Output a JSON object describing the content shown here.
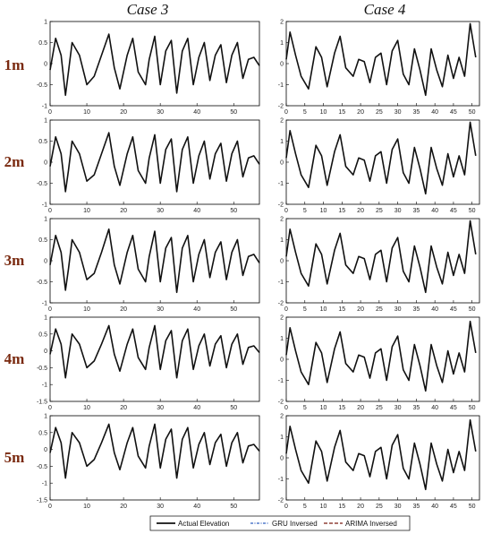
{
  "colors": {
    "actual": "#111111",
    "gru": "#2f5fc0",
    "arima": "#7a1a12",
    "row_label": "#7a2a10"
  },
  "legend": {
    "actual": "Actual Elevation",
    "gru": "GRU Inversed",
    "arima": "ARIMA Inversed"
  },
  "chart_data": [
    {
      "type": "line",
      "column_title": "Case 3",
      "row_label": "1m",
      "xlim": [
        0,
        57
      ],
      "ylim": [
        -1,
        1
      ],
      "xticks": [
        0,
        10,
        20,
        30,
        40,
        50
      ],
      "yticks": [
        -1,
        -0.5,
        0,
        0.5,
        1
      ],
      "series": [
        {
          "name": "Actual Elevation",
          "x": [
            0,
            1.5,
            3,
            4.2,
            5,
            6,
            8,
            10,
            12,
            14,
            16,
            17.5,
            19,
            21,
            22.5,
            24,
            26,
            27,
            28.5,
            30,
            31.5,
            33,
            34.5,
            36,
            37.5,
            39,
            40.5,
            42,
            43.5,
            45,
            46.5,
            48,
            49.5,
            51,
            52.5,
            54,
            55.5,
            57
          ],
          "y": [
            -0.15,
            0.6,
            0.2,
            -0.75,
            -0.2,
            0.5,
            0.2,
            -0.5,
            -0.3,
            0.2,
            0.7,
            -0.1,
            -0.6,
            0.2,
            0.6,
            -0.2,
            -0.5,
            0.1,
            0.65,
            -0.5,
            0.3,
            0.55,
            -0.7,
            0.3,
            0.6,
            -0.5,
            0.15,
            0.5,
            -0.4,
            0.2,
            0.45,
            -0.45,
            0.2,
            0.5,
            -0.35,
            0.1,
            0.15,
            -0.05
          ]
        }
      ]
    },
    {
      "type": "line",
      "column_title": "Case 4",
      "row_label": "1m",
      "xlim": [
        0,
        52
      ],
      "ylim": [
        -2,
        2
      ],
      "xticks": [
        0,
        5,
        10,
        15,
        20,
        25,
        30,
        35,
        40,
        45,
        50
      ],
      "yticks": [
        -2,
        -1,
        0,
        1,
        2
      ],
      "series": [
        {
          "name": "Actual Elevation",
          "x": [
            0,
            1,
            2.5,
            4,
            6,
            8,
            9.5,
            11,
            13,
            14.5,
            16,
            18,
            19.5,
            21,
            22.5,
            24,
            25.5,
            27,
            28.5,
            30,
            31.5,
            33,
            34.5,
            36,
            37.5,
            39,
            40.5,
            42,
            43.5,
            45,
            46.5,
            48,
            49.5,
            51
          ],
          "y": [
            0.2,
            1.5,
            0.4,
            -0.6,
            -1.2,
            0.8,
            0.3,
            -1.1,
            0.5,
            1.3,
            -0.2,
            -0.6,
            0.2,
            0.1,
            -0.9,
            0.3,
            0.5,
            -1.0,
            0.6,
            1.1,
            -0.5,
            -1.0,
            0.7,
            -0.3,
            -1.5,
            0.7,
            -0.3,
            -1.1,
            0.4,
            -0.7,
            0.3,
            -0.6,
            1.9,
            0.3
          ]
        }
      ]
    },
    {
      "type": "line",
      "column_title": "Case 3",
      "row_label": "2m",
      "xlim": [
        0,
        57
      ],
      "ylim": [
        -1,
        1
      ],
      "xticks": [
        0,
        10,
        20,
        30,
        40,
        50
      ],
      "yticks": [
        -1,
        -0.5,
        0,
        0.5,
        1
      ],
      "series": [
        {
          "name": "Actual Elevation",
          "x": [
            0,
            1.5,
            3,
            4.2,
            5,
            6,
            8,
            10,
            12,
            14,
            16,
            17.5,
            19,
            21,
            22.5,
            24,
            26,
            27,
            28.5,
            30,
            31.5,
            33,
            34.5,
            36,
            37.5,
            39,
            40.5,
            42,
            43.5,
            45,
            46.5,
            48,
            49.5,
            51,
            52.5,
            54,
            55.5,
            57
          ],
          "y": [
            -0.1,
            0.6,
            0.2,
            -0.7,
            -0.2,
            0.5,
            0.2,
            -0.45,
            -0.3,
            0.2,
            0.7,
            -0.1,
            -0.55,
            0.2,
            0.6,
            -0.2,
            -0.5,
            0.1,
            0.65,
            -0.5,
            0.3,
            0.55,
            -0.7,
            0.3,
            0.6,
            -0.5,
            0.15,
            0.5,
            -0.4,
            0.2,
            0.45,
            -0.45,
            0.2,
            0.5,
            -0.35,
            0.1,
            0.15,
            -0.05
          ]
        }
      ]
    },
    {
      "type": "line",
      "column_title": "Case 4",
      "row_label": "2m",
      "xlim": [
        0,
        52
      ],
      "ylim": [
        -2,
        2
      ],
      "xticks": [
        0,
        5,
        10,
        15,
        20,
        25,
        30,
        35,
        40,
        45,
        50
      ],
      "yticks": [
        -2,
        -1,
        0,
        1,
        2
      ],
      "series": [
        {
          "name": "Actual Elevation",
          "x": [
            0,
            1,
            2.5,
            4,
            6,
            8,
            9.5,
            11,
            13,
            14.5,
            16,
            18,
            19.5,
            21,
            22.5,
            24,
            25.5,
            27,
            28.5,
            30,
            31.5,
            33,
            34.5,
            36,
            37.5,
            39,
            40.5,
            42,
            43.5,
            45,
            46.5,
            48,
            49.5,
            51
          ],
          "y": [
            0.2,
            1.5,
            0.4,
            -0.6,
            -1.2,
            0.8,
            0.3,
            -1.1,
            0.5,
            1.3,
            -0.2,
            -0.6,
            0.2,
            0.1,
            -0.9,
            0.3,
            0.5,
            -1.0,
            0.6,
            1.1,
            -0.5,
            -1.0,
            0.7,
            -0.3,
            -1.5,
            0.7,
            -0.3,
            -1.1,
            0.4,
            -0.7,
            0.3,
            -0.6,
            1.9,
            0.3
          ]
        }
      ]
    },
    {
      "type": "line",
      "column_title": "Case 3",
      "row_label": "3m",
      "xlim": [
        0,
        57
      ],
      "ylim": [
        -1,
        1
      ],
      "xticks": [
        0,
        10,
        20,
        30,
        40,
        50
      ],
      "yticks": [
        -1,
        -0.5,
        0,
        0.5,
        1
      ],
      "series": [
        {
          "name": "Actual Elevation",
          "x": [
            0,
            1.5,
            3,
            4.2,
            5,
            6,
            8,
            10,
            12,
            14,
            16,
            17.5,
            19,
            21,
            22.5,
            24,
            26,
            27,
            28.5,
            30,
            31.5,
            33,
            34.5,
            36,
            37.5,
            39,
            40.5,
            42,
            43.5,
            45,
            46.5,
            48,
            49.5,
            51,
            52.5,
            54,
            55.5,
            57
          ],
          "y": [
            -0.1,
            0.6,
            0.2,
            -0.7,
            -0.2,
            0.5,
            0.2,
            -0.45,
            -0.3,
            0.2,
            0.75,
            -0.1,
            -0.55,
            0.2,
            0.6,
            -0.2,
            -0.5,
            0.1,
            0.7,
            -0.5,
            0.3,
            0.55,
            -0.75,
            0.3,
            0.6,
            -0.5,
            0.15,
            0.5,
            -0.4,
            0.2,
            0.45,
            -0.45,
            0.2,
            0.5,
            -0.35,
            0.1,
            0.15,
            -0.05
          ]
        }
      ]
    },
    {
      "type": "line",
      "column_title": "Case 4",
      "row_label": "3m",
      "xlim": [
        0,
        52
      ],
      "ylim": [
        -2,
        2
      ],
      "xticks": [
        0,
        5,
        10,
        15,
        20,
        25,
        30,
        35,
        40,
        45,
        50
      ],
      "yticks": [
        -2,
        -1,
        0,
        1,
        2
      ],
      "series": [
        {
          "name": "Actual Elevation",
          "x": [
            0,
            1,
            2.5,
            4,
            6,
            8,
            9.5,
            11,
            13,
            14.5,
            16,
            18,
            19.5,
            21,
            22.5,
            24,
            25.5,
            27,
            28.5,
            30,
            31.5,
            33,
            34.5,
            36,
            37.5,
            39,
            40.5,
            42,
            43.5,
            45,
            46.5,
            48,
            49.5,
            51
          ],
          "y": [
            0.2,
            1.5,
            0.4,
            -0.6,
            -1.2,
            0.8,
            0.3,
            -1.1,
            0.5,
            1.3,
            -0.2,
            -0.6,
            0.2,
            0.1,
            -0.9,
            0.3,
            0.5,
            -1.0,
            0.6,
            1.1,
            -0.5,
            -1.0,
            0.7,
            -0.3,
            -1.5,
            0.7,
            -0.3,
            -1.1,
            0.4,
            -0.7,
            0.3,
            -0.6,
            1.9,
            0.3
          ]
        }
      ]
    },
    {
      "type": "line",
      "column_title": "Case 3",
      "row_label": "4m",
      "xlim": [
        0,
        57
      ],
      "ylim": [
        -1.5,
        1
      ],
      "xticks": [
        0,
        10,
        20,
        30,
        40,
        50
      ],
      "yticks": [
        -1.5,
        -1,
        -0.5,
        0,
        0.5,
        1
      ],
      "series": [
        {
          "name": "Actual Elevation",
          "x": [
            0,
            1.5,
            3,
            4.2,
            5,
            6,
            8,
            10,
            12,
            14,
            16,
            17.5,
            19,
            21,
            22.5,
            24,
            26,
            27,
            28.5,
            30,
            31.5,
            33,
            34.5,
            36,
            37.5,
            39,
            40.5,
            42,
            43.5,
            45,
            46.5,
            48,
            49.5,
            51,
            52.5,
            54,
            55.5,
            57
          ],
          "y": [
            -0.1,
            0.65,
            0.2,
            -0.8,
            -0.2,
            0.5,
            0.2,
            -0.5,
            -0.3,
            0.2,
            0.75,
            -0.1,
            -0.6,
            0.2,
            0.65,
            -0.2,
            -0.55,
            0.1,
            0.75,
            -0.55,
            0.3,
            0.6,
            -0.8,
            0.3,
            0.65,
            -0.55,
            0.15,
            0.5,
            -0.45,
            0.2,
            0.45,
            -0.5,
            0.2,
            0.5,
            -0.4,
            0.1,
            0.15,
            -0.05
          ]
        }
      ]
    },
    {
      "type": "line",
      "column_title": "Case 4",
      "row_label": "4m",
      "xlim": [
        0,
        52
      ],
      "ylim": [
        -2,
        2
      ],
      "xticks": [
        0,
        5,
        10,
        15,
        20,
        25,
        30,
        35,
        40,
        45,
        50
      ],
      "yticks": [
        -2,
        -1,
        0,
        1,
        2
      ],
      "series": [
        {
          "name": "Actual Elevation",
          "x": [
            0,
            1,
            2.5,
            4,
            6,
            8,
            9.5,
            11,
            13,
            14.5,
            16,
            18,
            19.5,
            21,
            22.5,
            24,
            25.5,
            27,
            28.5,
            30,
            31.5,
            33,
            34.5,
            36,
            37.5,
            39,
            40.5,
            42,
            43.5,
            45,
            46.5,
            48,
            49.5,
            51
          ],
          "y": [
            0.2,
            1.5,
            0.4,
            -0.6,
            -1.2,
            0.8,
            0.3,
            -1.1,
            0.5,
            1.3,
            -0.2,
            -0.6,
            0.2,
            0.1,
            -0.9,
            0.3,
            0.5,
            -1.0,
            0.6,
            1.1,
            -0.5,
            -1.0,
            0.7,
            -0.3,
            -1.5,
            0.7,
            -0.3,
            -1.1,
            0.4,
            -0.7,
            0.3,
            -0.6,
            1.8,
            0.3
          ]
        }
      ]
    },
    {
      "type": "line",
      "column_title": "Case 3",
      "row_label": "5m",
      "xlim": [
        0,
        57
      ],
      "ylim": [
        -1.5,
        1
      ],
      "xticks": [
        0,
        10,
        20,
        30,
        40,
        50
      ],
      "yticks": [
        -1.5,
        -1,
        -0.5,
        0,
        0.5,
        1
      ],
      "series": [
        {
          "name": "Actual Elevation",
          "x": [
            0,
            1.5,
            3,
            4.2,
            5,
            6,
            8,
            10,
            12,
            14,
            16,
            17.5,
            19,
            21,
            22.5,
            24,
            26,
            27,
            28.5,
            30,
            31.5,
            33,
            34.5,
            36,
            37.5,
            39,
            40.5,
            42,
            43.5,
            45,
            46.5,
            48,
            49.5,
            51,
            52.5,
            54,
            55.5,
            57
          ],
          "y": [
            -0.1,
            0.65,
            0.2,
            -0.85,
            -0.2,
            0.5,
            0.2,
            -0.5,
            -0.3,
            0.2,
            0.75,
            -0.1,
            -0.6,
            0.2,
            0.65,
            -0.2,
            -0.55,
            0.1,
            0.75,
            -0.55,
            0.3,
            0.6,
            -0.85,
            0.3,
            0.65,
            -0.55,
            0.15,
            0.5,
            -0.45,
            0.2,
            0.45,
            -0.5,
            0.2,
            0.5,
            -0.4,
            0.1,
            0.15,
            -0.05
          ]
        }
      ]
    },
    {
      "type": "line",
      "column_title": "Case 4",
      "row_label": "5m",
      "xlim": [
        0,
        52
      ],
      "ylim": [
        -2,
        2
      ],
      "xticks": [
        0,
        5,
        10,
        15,
        20,
        25,
        30,
        35,
        40,
        45,
        50
      ],
      "yticks": [
        -2,
        -1,
        0,
        1,
        2
      ],
      "series": [
        {
          "name": "Actual Elevation",
          "x": [
            0,
            1,
            2.5,
            4,
            6,
            8,
            9.5,
            11,
            13,
            14.5,
            16,
            18,
            19.5,
            21,
            22.5,
            24,
            25.5,
            27,
            28.5,
            30,
            31.5,
            33,
            34.5,
            36,
            37.5,
            39,
            40.5,
            42,
            43.5,
            45,
            46.5,
            48,
            49.5,
            51
          ],
          "y": [
            0.2,
            1.5,
            0.4,
            -0.6,
            -1.2,
            0.8,
            0.3,
            -1.1,
            0.5,
            1.3,
            -0.2,
            -0.6,
            0.2,
            0.1,
            -0.9,
            0.3,
            0.5,
            -1.0,
            0.6,
            1.1,
            -0.5,
            -1.0,
            0.7,
            -0.3,
            -1.5,
            0.7,
            -0.3,
            -1.1,
            0.4,
            -0.7,
            0.3,
            -0.6,
            1.8,
            0.3
          ]
        }
      ]
    }
  ]
}
